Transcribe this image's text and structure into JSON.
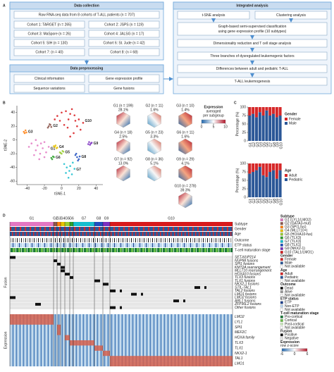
{
  "panel_labels": [
    "A",
    "B",
    "C",
    "D"
  ],
  "flowchart": {
    "collection": {
      "title": "Data collection",
      "summary": "Raw RNA-seq data from 8 cohorts of T-ALL patients (n = 707)",
      "cohorts": [
        "Cohort 1: TARGET (n = 265)",
        "Cohort 2: JSPS (n = 119)",
        "Cohort 3: MaSpore (n = 26)",
        "Cohort 4: JALSG (n = 17)",
        "Cohort 5: SIH (n = 130)",
        "Cohort 6: St. Jude (n = 42)",
        "Cohort 7: (n = 40)",
        "Cohort 8: (n = 68)"
      ]
    },
    "preprocessing": {
      "title": "Data preprocessing",
      "items": [
        "Clinical information",
        "Gene expression profile",
        "Sequence variations",
        "Gene fusions"
      ]
    },
    "integrated": {
      "title": "Integrated analysis",
      "pair": [
        "t-SNE analysis",
        "Clustering analysis"
      ],
      "classification": [
        "Graph-based semi-supervised classification",
        "using gene expression profile (10 subtypes)"
      ],
      "steps": [
        "Dimensionality reduction and T cell stage analysis",
        "Three branches of dysregulated leukemogenic factors",
        "Differences between adult and pediatric T-ALL",
        "T-ALL leukemogenesis"
      ]
    }
  },
  "chart_data": [
    {
      "type": "scatter",
      "xlabel": "tSNE-1",
      "ylabel": "tSNE-2",
      "xlim": [
        -52,
        48
      ],
      "ylim": [
        -65,
        50
      ],
      "xticks": [
        -40,
        -20,
        0,
        20,
        40
      ],
      "yticks": [
        -60,
        -40,
        -20,
        0,
        20,
        40
      ],
      "series": [
        {
          "name": "G1",
          "color": "#e377c2",
          "x": [
            -38,
            -35,
            -30,
            -28,
            -25,
            -22,
            -20,
            -18,
            -32,
            -26,
            -15,
            -24,
            -30,
            -20
          ],
          "y": [
            -10,
            -5,
            -15,
            -8,
            -20,
            -12,
            -3,
            -18,
            -22,
            -28,
            -10,
            -5,
            0,
            -25
          ]
        },
        {
          "name": "G2",
          "color": "#8c564b",
          "x": [
            -15,
            -13,
            -16,
            -12,
            -14
          ],
          "y": [
            20,
            22,
            18,
            19,
            23
          ]
        },
        {
          "name": "G3",
          "color": "#ff7f0e",
          "x": [
            -44,
            -42,
            -43,
            -41
          ],
          "y": [
            12,
            14,
            10,
            11
          ]
        },
        {
          "name": "G4",
          "color": "#e6c200",
          "x": [
            -8,
            -6,
            -7,
            -5,
            -9
          ],
          "y": [
            -10,
            -12,
            -8,
            -11,
            -9
          ]
        },
        {
          "name": "G5",
          "color": "#9acd32",
          "x": [
            -2,
            0,
            1,
            -1,
            2
          ],
          "y": [
            -18,
            -20,
            -16,
            -19,
            -17
          ]
        },
        {
          "name": "G6",
          "color": "#2ca02c",
          "x": [
            -12,
            -10,
            -11,
            -9
          ],
          "y": [
            -26,
            -24,
            -28,
            -25
          ]
        },
        {
          "name": "G7",
          "color": "#17becf",
          "x": [
            3,
            6,
            9,
            12,
            15,
            8,
            10,
            5,
            13
          ],
          "y": [
            -35,
            -40,
            -45,
            -50,
            -42,
            -55,
            -38,
            -48,
            -33
          ]
        },
        {
          "name": "G8",
          "color": "#1f4fbf",
          "x": [
            16,
            18,
            20,
            17,
            19,
            21
          ],
          "y": [
            -22,
            -25,
            -28,
            -20,
            -30,
            -24
          ]
        },
        {
          "name": "G9",
          "color": "#7b2fbf",
          "x": [
            32,
            34,
            33,
            35,
            31
          ],
          "y": [
            -3,
            -5,
            -7,
            -4,
            -6
          ]
        },
        {
          "name": "G10",
          "color": "#d7191c",
          "x": [
            -5,
            0,
            5,
            10,
            15,
            20,
            25,
            -2,
            8,
            12,
            18,
            3,
            22,
            7,
            14,
            -8,
            10,
            16
          ],
          "y": [
            35,
            40,
            42,
            38,
            36,
            30,
            25,
            28,
            30,
            45,
            20,
            22,
            15,
            18,
            10,
            30,
            5,
            28
          ]
        }
      ]
    },
    {
      "type": "bar",
      "stacked": true,
      "ylabel": "Percentage (%)",
      "legend_title": "Gender",
      "ylim": [
        0,
        100
      ],
      "yticks": [
        0,
        25,
        50,
        75,
        100
      ],
      "categories": [
        "G1",
        "G2",
        "G3",
        "G4",
        "G5",
        "G6",
        "G7",
        "G8",
        "G9",
        "G10"
      ],
      "series": [
        {
          "name": "Female",
          "color": "#d62728",
          "values": [
            25,
            20,
            30,
            15,
            25,
            10,
            25,
            20,
            30,
            25
          ]
        },
        {
          "name": "Male",
          "color": "#2b5797",
          "values": [
            75,
            80,
            70,
            85,
            75,
            90,
            75,
            80,
            70,
            75
          ]
        }
      ]
    },
    {
      "type": "bar",
      "stacked": true,
      "ylabel": "Percentage (%)",
      "legend_title": "Age",
      "ylim": [
        0,
        100
      ],
      "yticks": [
        0,
        25,
        50,
        75,
        100
      ],
      "categories": [
        "G1",
        "G2",
        "G3",
        "G4",
        "G5",
        "G6",
        "G7",
        "G8",
        "G9",
        "G10"
      ],
      "series": [
        {
          "name": "Adult",
          "color": "#d62728",
          "values": [
            30,
            25,
            20,
            10,
            35,
            40,
            25,
            20,
            45,
            20
          ]
        },
        {
          "name": "Pediatric",
          "color": "#2b5797",
          "values": [
            70,
            75,
            80,
            90,
            65,
            60,
            75,
            80,
            55,
            80
          ]
        }
      ]
    }
  ],
  "subgroups": {
    "items": [
      {
        "label": "G1 (n = 199)",
        "share": "28.1%"
      },
      {
        "label": "G2 (n = 11)",
        "share": "1.6%"
      },
      {
        "label": "G3 (n = 10)",
        "share": "1.4%"
      },
      {
        "label": "G4 (n = 18)",
        "share": "2.5%"
      },
      {
        "label": "G5 (n = 23)",
        "share": "3.3%"
      },
      {
        "label": "G6 (n = 11)",
        "share": "1.6%"
      },
      {
        "label": "G7 (n = 92)",
        "share": "13.0%"
      },
      {
        "label": "G8 (n = 36)",
        "share": "5.1%"
      },
      {
        "label": "G9 (n = 29)",
        "share": "4.1%"
      },
      {
        "label": "G10 (n = 278)",
        "share": "39.3%"
      }
    ],
    "legend_lines": [
      "Expression",
      "averaged",
      "per subgroup"
    ],
    "colorbar_ticks": [
      0,
      5,
      10
    ]
  },
  "heatmap": {
    "groups": [
      "G1",
      "G2",
      "G3",
      "G4",
      "G5",
      "G6",
      "G7",
      "G8",
      "G9",
      "G10"
    ],
    "tracks": [
      "Subtype",
      "Gender",
      "Age",
      "Outcome",
      "ETP status",
      "T-cell maturation stage"
    ],
    "fusion_label": "Fusion",
    "fusion_rows": [
      "SET-NUP214",
      "NUP98 fusions",
      "SPI1 fusions",
      "KMT2A rearrangement",
      "MLLT10 rearrangement",
      "HOXA10 fusions",
      "TLX3 fusions",
      "TLX1 fusions",
      "NKX2-1 fusions",
      "STIL-TAL1",
      "TAL2 fusions",
      "LMO1 fusions",
      "LMO2 fusions",
      "ABL1 fusions",
      "ZFP36L2 fusions",
      "Other fusions"
    ],
    "expression_label": "Expression",
    "expression_rows": [
      "LMO2",
      "LYL1",
      "SPI1",
      "MEF2C",
      "HOXA family",
      "TLX3",
      "TLX1",
      "NKX2-1",
      "TAL1",
      "LMO1"
    ],
    "legend": [
      {
        "title": "Subtype",
        "items": [
          {
            "label": "G1 (LYL1/LMO2)",
            "color": "#e377c2"
          },
          {
            "label": "G2 (GATA3-mut)",
            "color": "#8c564b"
          },
          {
            "label": "G3 (SPI1-fus)",
            "color": "#ff7f0e"
          },
          {
            "label": "G4 (MLLT10+)",
            "color": "#e6c200"
          },
          {
            "label": "G5 (HOXA10-fus)",
            "color": "#9acd32"
          },
          {
            "label": "G6 (TLX3)",
            "color": "#2ca02c"
          },
          {
            "label": "G7 (TLX3)",
            "color": "#17becf"
          },
          {
            "label": "G8 (TLX1)",
            "color": "#1f4fbf"
          },
          {
            "label": "G9 (NKX2-1)",
            "color": "#7b2fbf"
          },
          {
            "label": "G10 (TAL1/LMO1)",
            "color": "#d7191c"
          }
        ]
      },
      {
        "title": "Gender",
        "items": [
          {
            "label": "Female",
            "color": "#d62728"
          },
          {
            "label": "Male",
            "color": "#2b5797"
          },
          {
            "label": "Not available",
            "color": "#ffffff"
          }
        ]
      },
      {
        "title": "Age",
        "items": [
          {
            "label": "Adult",
            "color": "#d62728"
          },
          {
            "label": "Pediatric",
            "color": "#2b5797"
          },
          {
            "label": "Not available",
            "color": "#ffffff"
          }
        ]
      },
      {
        "title": "Outcome",
        "items": [
          {
            "label": "Dead",
            "color": "#111111"
          },
          {
            "label": "Alive",
            "color": "#999999"
          },
          {
            "label": "Not available",
            "color": "#ffffff"
          }
        ]
      },
      {
        "title": "ETP status",
        "items": [
          {
            "label": "ETP",
            "color": "#1a3e8c"
          },
          {
            "label": "Non-ETP",
            "color": "#bcd7ef"
          },
          {
            "label": "Not available",
            "color": "#ffffff"
          }
        ]
      },
      {
        "title": "T-cell maturation stage",
        "items": [
          {
            "label": "Pro-cortical",
            "color": "#1b7a3a"
          },
          {
            "label": "Cortical",
            "color": "#6cbf4a"
          },
          {
            "label": "Post-cortical",
            "color": "#d2efc4"
          },
          {
            "label": "Not available",
            "color": "#ffffff"
          }
        ]
      },
      {
        "title": "Fusion",
        "items": [
          {
            "label": "Positive",
            "color": "#111111"
          },
          {
            "label": "Negative",
            "color": "#e6e6e6"
          }
        ]
      }
    ],
    "expression_legend": {
      "title": "Expression",
      "subtitle": "row z-score",
      "ticks": [
        -6,
        0,
        6
      ]
    }
  }
}
